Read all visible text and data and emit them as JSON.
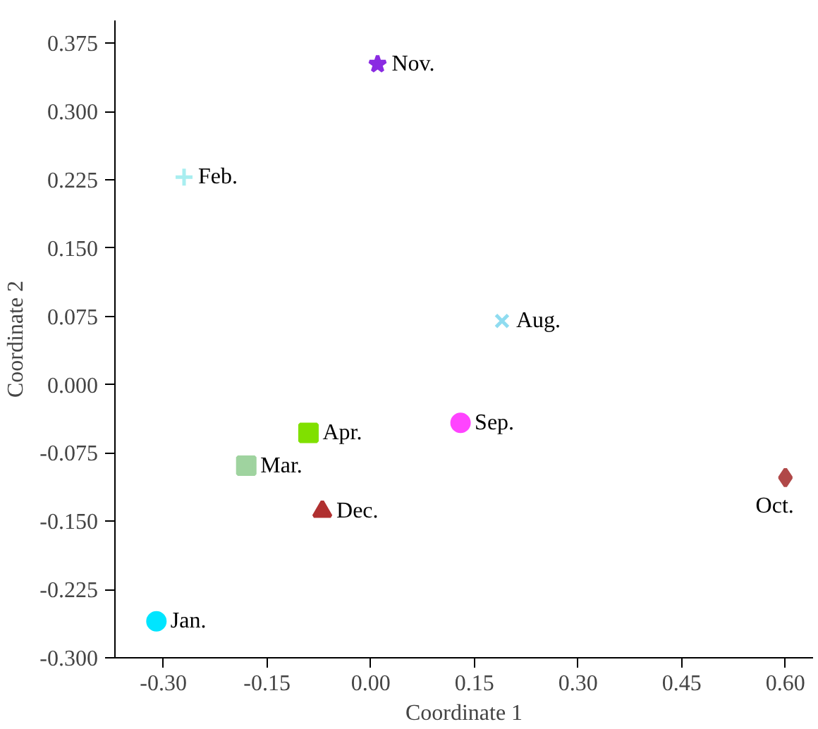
{
  "chart_data": {
    "type": "scatter",
    "xlabel": "Coordinate 1",
    "ylabel": "Coordinate 2",
    "xlim": [
      -0.37,
      0.64
    ],
    "ylim": [
      -0.3,
      0.4
    ],
    "xticks": [
      {
        "value": -0.3,
        "label": "-0.30"
      },
      {
        "value": -0.15,
        "label": "-0.15"
      },
      {
        "value": 0,
        "label": "0.00"
      },
      {
        "value": 0.15,
        "label": "0.15"
      },
      {
        "value": 0.3,
        "label": "0.30"
      },
      {
        "value": 0.45,
        "label": "0.45"
      },
      {
        "value": 0.6,
        "label": "0.60"
      }
    ],
    "yticks": [
      {
        "value": -0.3,
        "label": "-0.300"
      },
      {
        "value": -0.225,
        "label": "-0.225"
      },
      {
        "value": -0.15,
        "label": "-0.150"
      },
      {
        "value": -0.075,
        "label": "-0.075"
      },
      {
        "value": 0,
        "label": "0.000"
      },
      {
        "value": 0.075,
        "label": "0.075"
      },
      {
        "value": 0.15,
        "label": "0.150"
      },
      {
        "value": 0.225,
        "label": "0.225"
      },
      {
        "value": 0.3,
        "label": "0.300"
      },
      {
        "value": 0.375,
        "label": "0.375"
      }
    ],
    "grid": false,
    "series": [
      {
        "name": "Jan.",
        "color": "#00e5ff",
        "marker": "circle",
        "x": [
          -0.31
        ],
        "values": [
          -0.26
        ]
      },
      {
        "name": "Feb.",
        "color": "#a8eef0",
        "marker": "cross",
        "x": [
          -0.27
        ],
        "values": [
          0.228
        ]
      },
      {
        "name": "Mar.",
        "color": "#9fd39f",
        "marker": "square",
        "x": [
          -0.18
        ],
        "values": [
          -0.089
        ]
      },
      {
        "name": "Apr.",
        "color": "#80e000",
        "marker": "square",
        "x": [
          -0.09
        ],
        "values": [
          -0.053
        ]
      },
      {
        "name": "Aug.",
        "color": "#8fdcf0",
        "marker": "x",
        "x": [
          0.19
        ],
        "values": [
          0.07
        ]
      },
      {
        "name": "Sep.",
        "color": "#ff44ff",
        "marker": "circle",
        "x": [
          0.13
        ],
        "values": [
          -0.042
        ]
      },
      {
        "name": "Oct.",
        "color": "#b04848",
        "marker": "diamond",
        "x": [
          0.6
        ],
        "values": [
          -0.102
        ]
      },
      {
        "name": "Nov.",
        "color": "#8a2be2",
        "marker": "star",
        "x": [
          0.01
        ],
        "values": [
          0.352
        ]
      },
      {
        "name": "Dec.",
        "color": "#b03030",
        "marker": "triangle",
        "x": [
          -0.07
        ],
        "values": [
          -0.139
        ]
      }
    ]
  }
}
